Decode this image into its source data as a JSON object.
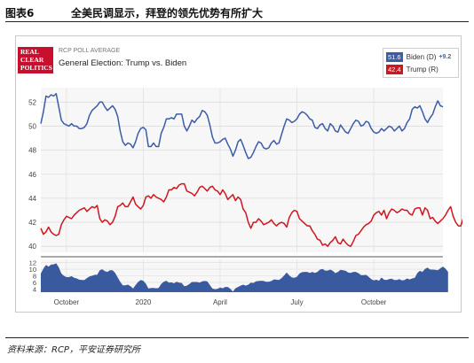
{
  "figure": {
    "label": "图表6",
    "title": "全美民调显示，拜登的领先优势有所扩大",
    "source": "资料来源：RCP，平安证券研究所"
  },
  "chart_header": {
    "logo_text": [
      "REAL",
      "CLEAR",
      "POLITICS"
    ],
    "kicker": "RCP POLL AVERAGE",
    "title": "General Election: Trump vs. Biden"
  },
  "legend": [
    {
      "value": "51.6",
      "name": "Biden (D)",
      "change": "+9.2",
      "color": "#3b5ca8"
    },
    {
      "value": "42.4",
      "name": "Trump (R)",
      "change": "",
      "color": "#d0161f"
    }
  ],
  "colors": {
    "biden": "#3b5ca8",
    "trump": "#d0161f",
    "spread": "#3a5aa0"
  },
  "chart_data": {
    "type": "line",
    "x_tick_labels": [
      "October",
      "2020",
      "April",
      "July",
      "October"
    ],
    "x_tick_index": [
      10,
      40,
      70,
      100,
      130
    ],
    "upper_panel": {
      "ylim": [
        39.5,
        53.2
      ],
      "y_ticks": [
        40,
        42,
        44,
        46,
        48,
        50,
        52
      ],
      "grid": true,
      "series": [
        {
          "name": "Biden (D)",
          "values": [
            50.2,
            51.2,
            52.5,
            52.4,
            52.6,
            52.5,
            52.7,
            51.6,
            50.5,
            50.2,
            50.1,
            50.0,
            50.2,
            50.0,
            50.0,
            49.8,
            49.8,
            49.9,
            50.2,
            50.9,
            51.3,
            51.5,
            51.7,
            52.0,
            52.0,
            51.6,
            51.3,
            51.5,
            51.7,
            51.4,
            50.8,
            49.6,
            48.7,
            48.4,
            48.6,
            48.5,
            48.2,
            48.7,
            49.4,
            49.8,
            49.9,
            49.7,
            48.3,
            48.3,
            48.6,
            48.3,
            48.3,
            49.4,
            49.9,
            50.6,
            50.6,
            50.7,
            50.6,
            51.0,
            51.0,
            51.0,
            50.0,
            49.6,
            50.0,
            50.5,
            50.3,
            50.6,
            50.8,
            51.3,
            51.2,
            50.9,
            50.1,
            49.1,
            48.6,
            48.6,
            48.7,
            48.9,
            49.0,
            48.5,
            48.1,
            47.5,
            48.0,
            48.7,
            48.9,
            48.4,
            47.8,
            47.3,
            47.4,
            47.8,
            48.3,
            48.7,
            48.6,
            48.2,
            48.1,
            48.2,
            48.6,
            48.8,
            48.5,
            48.6,
            49.3,
            50.0,
            50.6,
            50.5,
            50.3,
            50.4,
            50.6,
            51.0,
            51.2,
            51.1,
            50.9,
            50.6,
            50.5,
            49.9,
            49.8,
            50.1,
            50.2,
            49.8,
            49.6,
            50.2,
            50.0,
            49.6,
            49.5,
            50.1,
            49.8,
            49.5,
            49.4,
            49.8,
            50.2,
            50.5,
            50.4,
            50.0,
            50.1,
            50.4,
            50.3,
            49.8,
            49.5,
            49.4,
            49.5,
            49.8,
            49.6,
            49.8,
            50.0,
            49.9,
            49.6,
            49.8,
            50.0,
            49.6,
            49.8,
            50.3,
            50.6,
            51.4,
            51.6,
            51.5,
            51.7,
            51.2,
            50.6,
            50.3,
            50.7,
            51.0,
            51.6,
            52.1,
            51.7,
            51.6
          ]
        },
        {
          "name": "Trump (R)",
          "values": [
            41.5,
            41.0,
            41.2,
            41.6,
            41.2,
            41.0,
            40.9,
            41.0,
            41.8,
            42.2,
            42.5,
            42.4,
            42.3,
            42.6,
            42.8,
            43.0,
            43.1,
            43.2,
            42.9,
            43.1,
            43.3,
            43.2,
            43.4,
            42.3,
            42.0,
            42.2,
            42.1,
            41.8,
            42.0,
            42.5,
            43.3,
            43.4,
            43.6,
            43.3,
            43.3,
            43.7,
            44.1,
            43.5,
            43.3,
            43.1,
            43.4,
            44.1,
            44.2,
            44.0,
            44.3,
            44.1,
            44.0,
            43.9,
            43.7,
            44.1,
            44.7,
            44.7,
            44.9,
            44.8,
            45.1,
            45.2,
            45.2,
            44.6,
            44.5,
            44.4,
            44.2,
            44.5,
            44.9,
            45.0,
            44.8,
            44.6,
            44.9,
            45.0,
            44.7,
            44.6,
            44.3,
            44.7,
            44.4,
            43.9,
            44.1,
            44.3,
            43.8,
            44.1,
            43.9,
            43.1,
            42.8,
            42.0,
            41.5,
            42.0,
            42.0,
            42.3,
            42.1,
            41.8,
            41.9,
            42.0,
            42.2,
            41.9,
            41.7,
            41.9,
            42.0,
            41.9,
            41.6,
            42.4,
            42.8,
            43.0,
            42.9,
            42.3,
            42.1,
            41.9,
            41.7,
            41.7,
            41.3,
            41.0,
            40.6,
            40.5,
            40.1,
            40.2,
            40.0,
            40.3,
            40.5,
            40.8,
            40.3,
            40.2,
            40.6,
            40.3,
            40.1,
            40.0,
            40.4,
            40.9,
            41.0,
            41.3,
            41.6,
            41.8,
            41.9,
            42.1,
            42.6,
            42.8,
            42.9,
            42.6,
            43.0,
            42.3,
            42.8,
            43.1,
            43.0,
            42.8,
            42.9,
            43.1,
            43.0,
            43.0,
            42.7,
            42.6,
            43.1,
            43.2,
            43.2,
            42.6,
            43.2,
            43.0,
            42.3,
            42.4,
            42.1,
            41.9,
            42.1,
            42.3,
            42.6,
            43.0,
            43.3,
            42.5,
            42.0,
            41.7,
            41.7,
            42.4
          ]
        }
      ]
    },
    "lower_panel": {
      "ylim": [
        3,
        13
      ],
      "y_ticks": [
        4,
        6,
        8,
        10,
        12
      ],
      "type": "area",
      "series": [
        {
          "name": "spread",
          "values": [
            8.7,
            10.2,
            11.3,
            10.8,
            11.4,
            11.5,
            11.8,
            10.6,
            8.7,
            8.0,
            7.6,
            7.6,
            7.9,
            7.4,
            7.2,
            6.8,
            6.7,
            6.7,
            7.3,
            7.8,
            8.0,
            8.3,
            8.3,
            9.7,
            10.0,
            9.4,
            9.2,
            9.7,
            9.7,
            8.9,
            7.5,
            6.2,
            5.1,
            5.1,
            5.3,
            4.8,
            4.1,
            5.2,
            6.1,
            6.7,
            6.5,
            5.6,
            4.1,
            4.3,
            4.3,
            4.2,
            4.3,
            5.5,
            6.2,
            6.5,
            5.9,
            6.0,
            5.7,
            6.2,
            5.9,
            5.8,
            4.8,
            5.0,
            5.5,
            6.1,
            6.1,
            6.1,
            5.9,
            6.3,
            6.4,
            6.3,
            5.2,
            4.1,
            3.9,
            4.0,
            4.4,
            4.2,
            4.6,
            4.6,
            4.0,
            3.2,
            4.2,
            4.6,
            5.0,
            5.3,
            5.0,
            5.3,
            5.9,
            5.8,
            6.3,
            6.4,
            6.5,
            6.4,
            6.2,
            6.2,
            6.4,
            6.9,
            6.8,
            6.7,
            7.3,
            8.1,
            9.0,
            8.1,
            7.5,
            7.4,
            7.7,
            8.7,
            9.1,
            9.2,
            9.2,
            8.9,
            9.2,
            8.9,
            9.2,
            9.9,
            10.1,
            9.6,
            9.6,
            9.9,
            9.5,
            8.8,
            9.2,
            9.8,
            9.7,
            9.5,
            9.0,
            8.9,
            9.2,
            9.2,
            8.8,
            8.2,
            8.2,
            8.3,
            7.7,
            7.0,
            6.6,
            6.8,
            6.5,
            7.5,
            6.8,
            6.7,
            7.0,
            7.1,
            6.7,
            6.7,
            7.0,
            6.6,
            6.7,
            7.2,
            6.9,
            7.2,
            7.4,
            8.8,
            9.5,
            9.2,
            10.1,
            10.5,
            9.9,
            9.9,
            9.8,
            9.7,
            10.3,
            10.8,
            10.2,
            9.2
          ]
        }
      ]
    }
  }
}
